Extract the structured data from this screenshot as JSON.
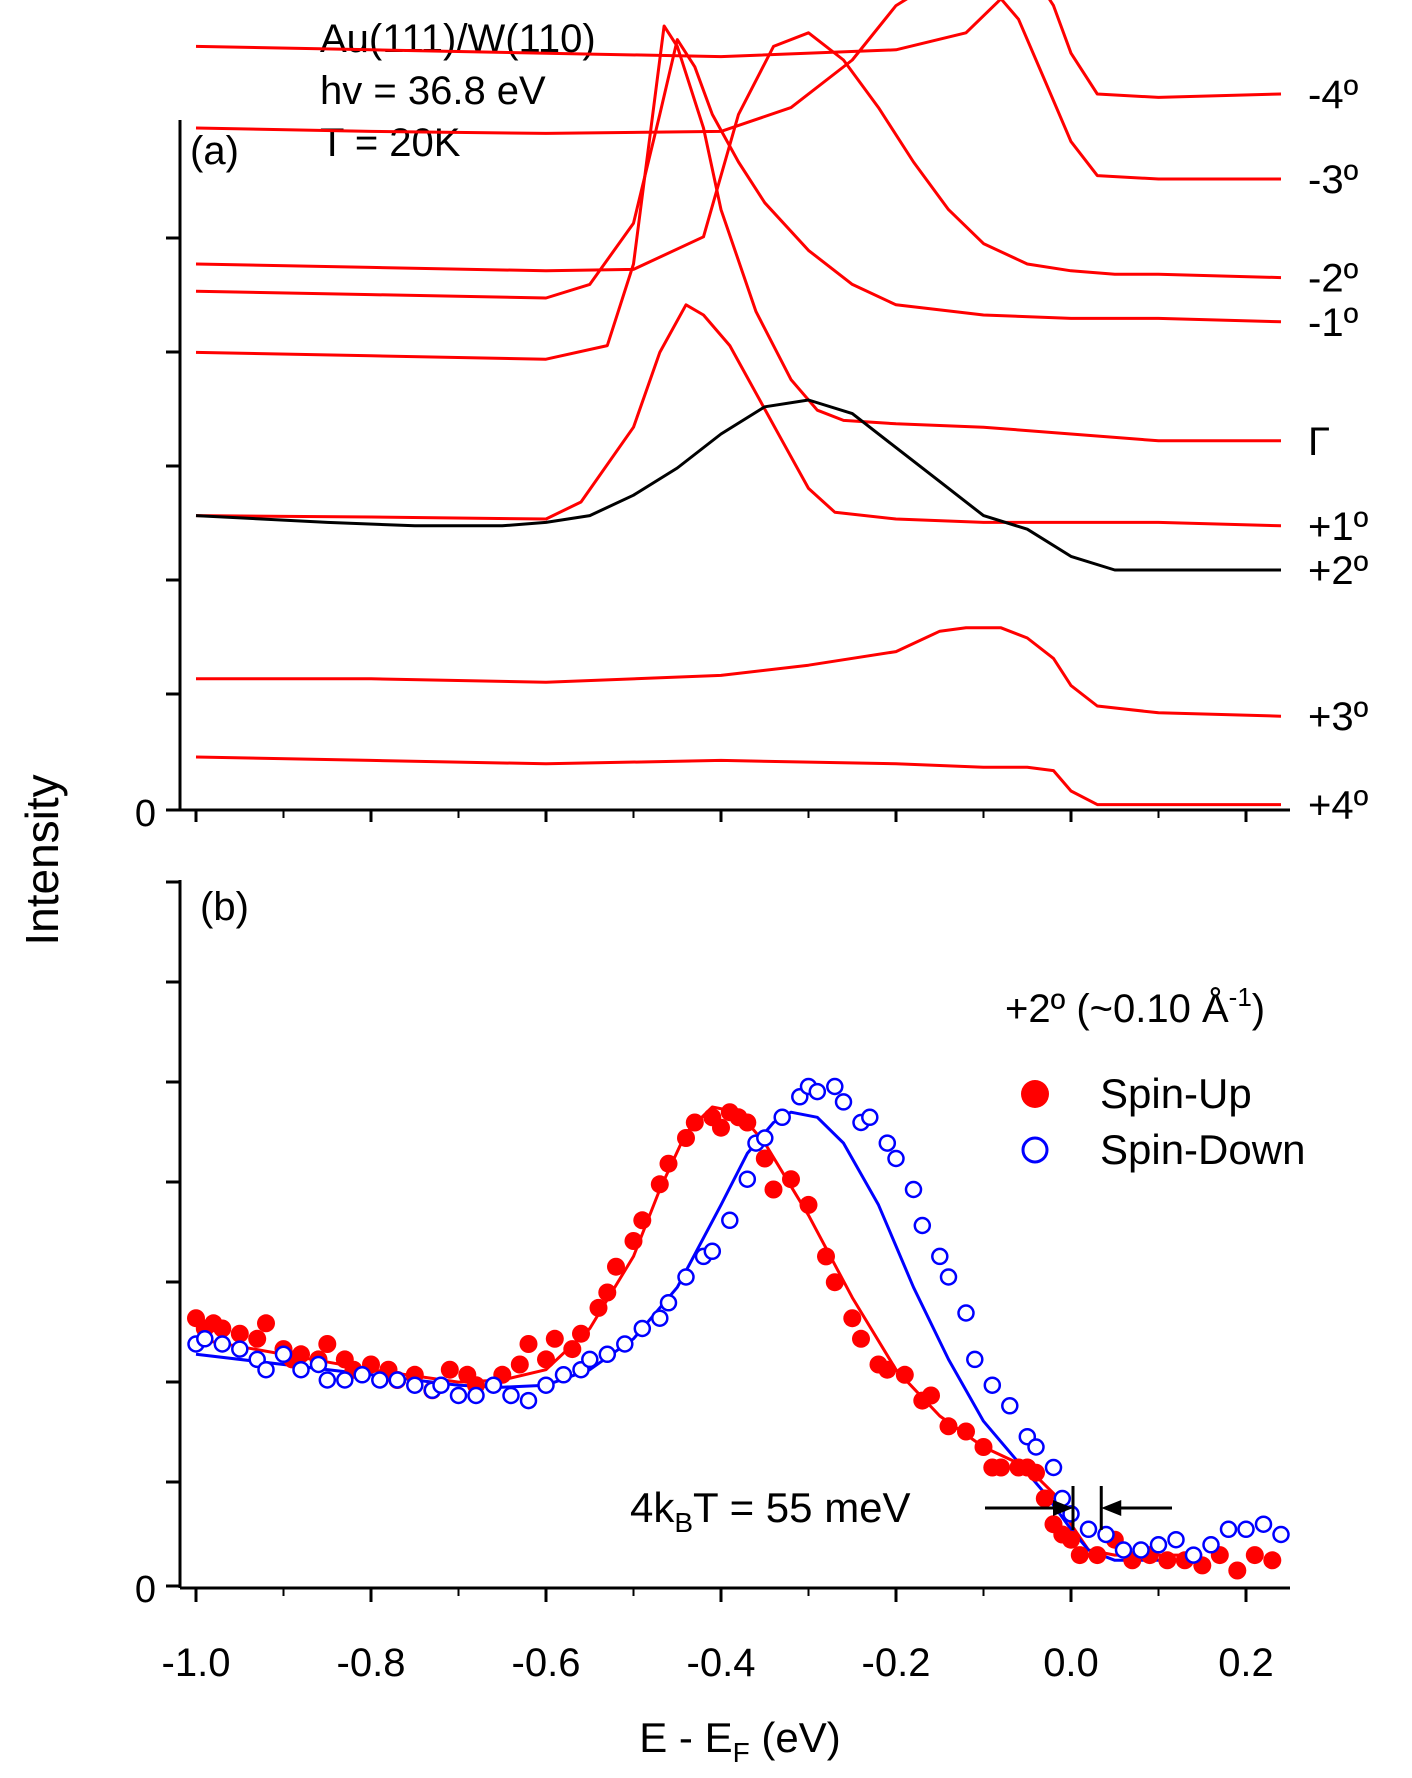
{
  "chart_data": [
    {
      "panel": "a",
      "type": "line",
      "panel_label": "(a)",
      "title_lines": [
        "Au(111)/W(110)",
        "hv = 36.8 eV",
        "T = 20K"
      ],
      "ylabel": "Intensity",
      "y_zero_label": "0",
      "xlim": [
        -1.02,
        0.25
      ],
      "series": [
        {
          "name": "-4º",
          "color": "#ff0000",
          "offset": 10.2,
          "x": [
            -1.0,
            -0.8,
            -0.6,
            -0.4,
            -0.2,
            -0.12,
            -0.08,
            -0.04,
            -0.02,
            0.0,
            0.03,
            0.1,
            0.24
          ],
          "y": [
            1.0,
            0.95,
            0.9,
            0.85,
            0.95,
            1.2,
            1.7,
            2.0,
            1.6,
            0.9,
            0.3,
            0.25,
            0.3
          ]
        },
        {
          "name": "-3º",
          "color": "#ff0000",
          "offset": 9.0,
          "x": [
            -1.0,
            -0.8,
            -0.6,
            -0.4,
            -0.32,
            -0.25,
            -0.2,
            -0.15,
            -0.1,
            -0.06,
            -0.03,
            0.0,
            0.03,
            0.1,
            0.24
          ],
          "y": [
            1.0,
            0.95,
            0.92,
            0.95,
            1.3,
            2.0,
            2.8,
            3.2,
            3.2,
            2.6,
            1.7,
            0.8,
            0.3,
            0.25,
            0.25
          ]
        },
        {
          "name": "-2º",
          "color": "#ff0000",
          "offset": 7.8,
          "x": [
            -1.0,
            -0.8,
            -0.6,
            -0.5,
            -0.42,
            -0.38,
            -0.34,
            -0.3,
            -0.26,
            -0.22,
            -0.18,
            -0.14,
            -0.1,
            -0.05,
            0.0,
            0.05,
            0.1,
            0.24
          ],
          "y": [
            0.2,
            0.15,
            0.1,
            0.12,
            0.6,
            2.4,
            3.4,
            3.6,
            3.2,
            2.5,
            1.7,
            1.0,
            0.5,
            0.2,
            0.1,
            0.05,
            0.05,
            0.0
          ]
        },
        {
          "name": "-1º",
          "color": "#ff0000",
          "offset": 6.6,
          "x": [
            -1.0,
            -0.8,
            -0.6,
            -0.55,
            -0.5,
            -0.47,
            -0.45,
            -0.43,
            -0.41,
            -0.38,
            -0.35,
            -0.3,
            -0.25,
            -0.2,
            -0.1,
            0.0,
            0.1,
            0.24
          ],
          "y": [
            1.0,
            0.95,
            0.9,
            1.1,
            2.0,
            3.6,
            4.7,
            4.3,
            3.6,
            2.9,
            2.3,
            1.6,
            1.1,
            0.8,
            0.65,
            0.6,
            0.6,
            0.55
          ]
        },
        {
          "name": "Γ",
          "color": "#ff0000",
          "offset": 5.4,
          "x": [
            -1.0,
            -0.8,
            -0.6,
            -0.53,
            -0.5,
            -0.48,
            -0.465,
            -0.45,
            -0.42,
            -0.4,
            -0.36,
            -0.32,
            -0.29,
            -0.26,
            -0.2,
            -0.1,
            0.0,
            0.1,
            0.24
          ],
          "y": [
            1.3,
            1.25,
            1.2,
            1.4,
            2.6,
            4.6,
            6.1,
            5.8,
            4.6,
            3.4,
            1.9,
            0.9,
            0.45,
            0.3,
            0.25,
            0.2,
            0.1,
            0.0,
            0.0
          ]
        },
        {
          "name": "+1º",
          "color": "#ff0000",
          "offset": 4.2,
          "x": [
            -1.0,
            -0.8,
            -0.6,
            -0.56,
            -0.5,
            -0.47,
            -0.44,
            -0.42,
            -0.39,
            -0.36,
            -0.33,
            -0.3,
            -0.27,
            -0.2,
            -0.1,
            0.0,
            0.1,
            0.24
          ],
          "y": [
            0.1,
            0.08,
            0.05,
            0.3,
            1.4,
            2.5,
            3.2,
            3.05,
            2.6,
            1.9,
            1.2,
            0.5,
            0.15,
            0.05,
            0.0,
            0.0,
            0.0,
            -0.05
          ]
        },
        {
          "name": "+2º",
          "color": "#000000",
          "offset": 3.0,
          "x": [
            -1.0,
            -0.85,
            -0.75,
            -0.65,
            -0.6,
            -0.55,
            -0.5,
            -0.45,
            -0.4,
            -0.35,
            -0.3,
            -0.25,
            -0.2,
            -0.15,
            -0.1,
            -0.05,
            0.0,
            0.05,
            0.1,
            0.24
          ],
          "y": [
            1.3,
            1.2,
            1.15,
            1.15,
            1.2,
            1.3,
            1.6,
            2.0,
            2.5,
            2.9,
            3.0,
            2.8,
            2.3,
            1.8,
            1.3,
            1.1,
            0.7,
            0.5,
            0.5,
            0.5
          ]
        },
        {
          "name": "+3º",
          "color": "#ff0000",
          "offset": 1.8,
          "x": [
            -1.0,
            -0.8,
            -0.6,
            -0.4,
            -0.3,
            -0.2,
            -0.15,
            -0.12,
            -0.08,
            -0.05,
            -0.02,
            0.0,
            0.03,
            0.1,
            0.24
          ],
          "y": [
            0.1,
            0.1,
            0.05,
            0.15,
            0.3,
            0.5,
            0.8,
            0.85,
            0.85,
            0.7,
            0.4,
            0.0,
            -0.3,
            -0.4,
            -0.45
          ]
        },
        {
          "name": "+4º",
          "color": "#ff0000",
          "offset": 0.6,
          "x": [
            -1.0,
            -0.8,
            -0.6,
            -0.4,
            -0.2,
            -0.1,
            -0.05,
            -0.02,
            0.0,
            0.03,
            0.1,
            0.24
          ],
          "y": [
            0.15,
            0.1,
            0.05,
            0.1,
            0.05,
            0.0,
            0.0,
            -0.05,
            -0.35,
            -0.55,
            -0.55,
            -0.55
          ]
        }
      ]
    },
    {
      "panel": "b",
      "type": "scatter",
      "panel_label": "(b)",
      "xlabel": "E - E",
      "xlabel_sub": "F",
      "xlabel_unit": " (eV)",
      "y_zero_label": "0",
      "xlim": [
        -1.0,
        0.25
      ],
      "ylim": [
        0,
        6
      ],
      "xticks": [
        -1.0,
        -0.8,
        -0.6,
        -0.4,
        -0.2,
        0.0,
        0.2
      ],
      "xtick_labels": [
        "-1.0",
        "-0.8",
        "-0.6",
        "-0.4",
        "-0.2",
        "0.0",
        "0.2"
      ],
      "legend_title": "+2º (~0.10 Å",
      "legend_title_sup": "-1",
      "legend_title_end": ")",
      "annotation": {
        "prefix": "4k",
        "sub": "B",
        "suffix": "T = 55 meV",
        "x_left": 0.0,
        "x_right": 0.03
      },
      "series": [
        {
          "name": "Spin-Up",
          "marker": "filled-circle",
          "color": "#ff0000",
          "fit_x": [
            -1.0,
            -0.9,
            -0.8,
            -0.7,
            -0.65,
            -0.6,
            -0.55,
            -0.5,
            -0.47,
            -0.44,
            -0.41,
            -0.38,
            -0.35,
            -0.3,
            -0.25,
            -0.2,
            -0.15,
            -0.1,
            -0.05,
            -0.02,
            0.0,
            0.02,
            0.05,
            0.1,
            0.15
          ],
          "fit_y": [
            2.4,
            2.25,
            2.1,
            1.98,
            2.0,
            2.1,
            2.5,
            3.2,
            3.85,
            4.4,
            4.65,
            4.6,
            4.3,
            3.6,
            2.8,
            2.1,
            1.65,
            1.35,
            1.15,
            0.9,
            0.6,
            0.35,
            0.3,
            0.3,
            0.3
          ],
          "x": [
            -1.0,
            -0.99,
            -0.98,
            -0.97,
            -0.95,
            -0.93,
            -0.92,
            -0.9,
            -0.89,
            -0.88,
            -0.86,
            -0.85,
            -0.83,
            -0.82,
            -0.8,
            -0.78,
            -0.77,
            -0.75,
            -0.73,
            -0.71,
            -0.69,
            -0.68,
            -0.65,
            -0.63,
            -0.62,
            -0.6,
            -0.59,
            -0.57,
            -0.56,
            -0.54,
            -0.53,
            -0.52,
            -0.5,
            -0.49,
            -0.47,
            -0.46,
            -0.44,
            -0.43,
            -0.41,
            -0.4,
            -0.39,
            -0.38,
            -0.37,
            -0.35,
            -0.34,
            -0.32,
            -0.3,
            -0.28,
            -0.27,
            -0.25,
            -0.24,
            -0.22,
            -0.21,
            -0.19,
            -0.17,
            -0.16,
            -0.14,
            -0.12,
            -0.1,
            -0.09,
            -0.08,
            -0.06,
            -0.05,
            -0.04,
            -0.03,
            -0.02,
            -0.01,
            0.0,
            0.01,
            0.03,
            0.05,
            0.07,
            0.09,
            0.11,
            0.13,
            0.15,
            0.17,
            0.19,
            0.21,
            0.23
          ],
          "y": [
            2.6,
            2.5,
            2.55,
            2.5,
            2.45,
            2.4,
            2.55,
            2.3,
            2.2,
            2.25,
            2.2,
            2.35,
            2.2,
            2.1,
            2.15,
            2.1,
            2.0,
            2.05,
            1.9,
            2.1,
            2.05,
            1.95,
            2.05,
            2.15,
            2.35,
            2.2,
            2.4,
            2.3,
            2.45,
            2.7,
            2.85,
            3.1,
            3.35,
            3.55,
            3.9,
            4.1,
            4.35,
            4.5,
            4.55,
            4.45,
            4.6,
            4.55,
            4.5,
            4.15,
            3.85,
            3.95,
            3.7,
            3.2,
            2.95,
            2.6,
            2.4,
            2.15,
            2.1,
            2.05,
            1.8,
            1.85,
            1.55,
            1.5,
            1.35,
            1.15,
            1.15,
            1.15,
            1.15,
            1.1,
            0.85,
            0.6,
            0.5,
            0.45,
            0.3,
            0.3,
            0.45,
            0.25,
            0.3,
            0.25,
            0.25,
            0.2,
            0.3,
            0.15,
            0.3,
            0.25
          ]
        },
        {
          "name": "Spin-Down",
          "marker": "open-circle",
          "color": "#0000ff",
          "fit_x": [
            -1.0,
            -0.9,
            -0.8,
            -0.7,
            -0.65,
            -0.6,
            -0.55,
            -0.5,
            -0.45,
            -0.4,
            -0.37,
            -0.34,
            -0.32,
            -0.29,
            -0.26,
            -0.22,
            -0.18,
            -0.14,
            -0.1,
            -0.06,
            -0.03,
            0.0,
            0.02,
            0.05,
            0.1,
            0.15
          ],
          "fit_y": [
            2.25,
            2.15,
            2.05,
            1.95,
            1.93,
            1.95,
            2.1,
            2.4,
            2.9,
            3.7,
            4.2,
            4.5,
            4.6,
            4.55,
            4.3,
            3.7,
            2.9,
            2.2,
            1.6,
            1.2,
            0.9,
            0.55,
            0.35,
            0.25,
            0.25,
            0.25
          ],
          "x": [
            -1.0,
            -0.99,
            -0.97,
            -0.95,
            -0.93,
            -0.92,
            -0.9,
            -0.88,
            -0.86,
            -0.85,
            -0.83,
            -0.81,
            -0.79,
            -0.77,
            -0.75,
            -0.73,
            -0.72,
            -0.7,
            -0.68,
            -0.66,
            -0.64,
            -0.62,
            -0.6,
            -0.58,
            -0.56,
            -0.55,
            -0.53,
            -0.51,
            -0.49,
            -0.47,
            -0.46,
            -0.44,
            -0.42,
            -0.41,
            -0.39,
            -0.37,
            -0.36,
            -0.35,
            -0.33,
            -0.31,
            -0.3,
            -0.29,
            -0.27,
            -0.26,
            -0.24,
            -0.23,
            -0.21,
            -0.2,
            -0.18,
            -0.17,
            -0.15,
            -0.14,
            -0.12,
            -0.11,
            -0.09,
            -0.07,
            -0.05,
            -0.04,
            -0.02,
            -0.01,
            0.0,
            0.02,
            0.04,
            0.06,
            0.08,
            0.1,
            0.12,
            0.14,
            0.16,
            0.18,
            0.2,
            0.22,
            0.24
          ],
          "y": [
            2.35,
            2.4,
            2.35,
            2.3,
            2.2,
            2.1,
            2.25,
            2.1,
            2.15,
            2.0,
            2.0,
            2.05,
            2.0,
            2.0,
            1.95,
            1.9,
            1.95,
            1.85,
            1.85,
            1.95,
            1.85,
            1.8,
            1.95,
            2.05,
            2.1,
            2.2,
            2.25,
            2.35,
            2.5,
            2.6,
            2.75,
            3.0,
            3.2,
            3.25,
            3.55,
            3.95,
            4.3,
            4.35,
            4.55,
            4.75,
            4.85,
            4.8,
            4.85,
            4.7,
            4.5,
            4.55,
            4.3,
            4.15,
            3.85,
            3.5,
            3.2,
            3.0,
            2.65,
            2.2,
            1.95,
            1.75,
            1.45,
            1.35,
            1.15,
            0.85,
            0.7,
            0.55,
            0.5,
            0.35,
            0.35,
            0.4,
            0.45,
            0.3,
            0.4,
            0.55,
            0.55,
            0.6,
            0.5
          ]
        }
      ]
    }
  ]
}
